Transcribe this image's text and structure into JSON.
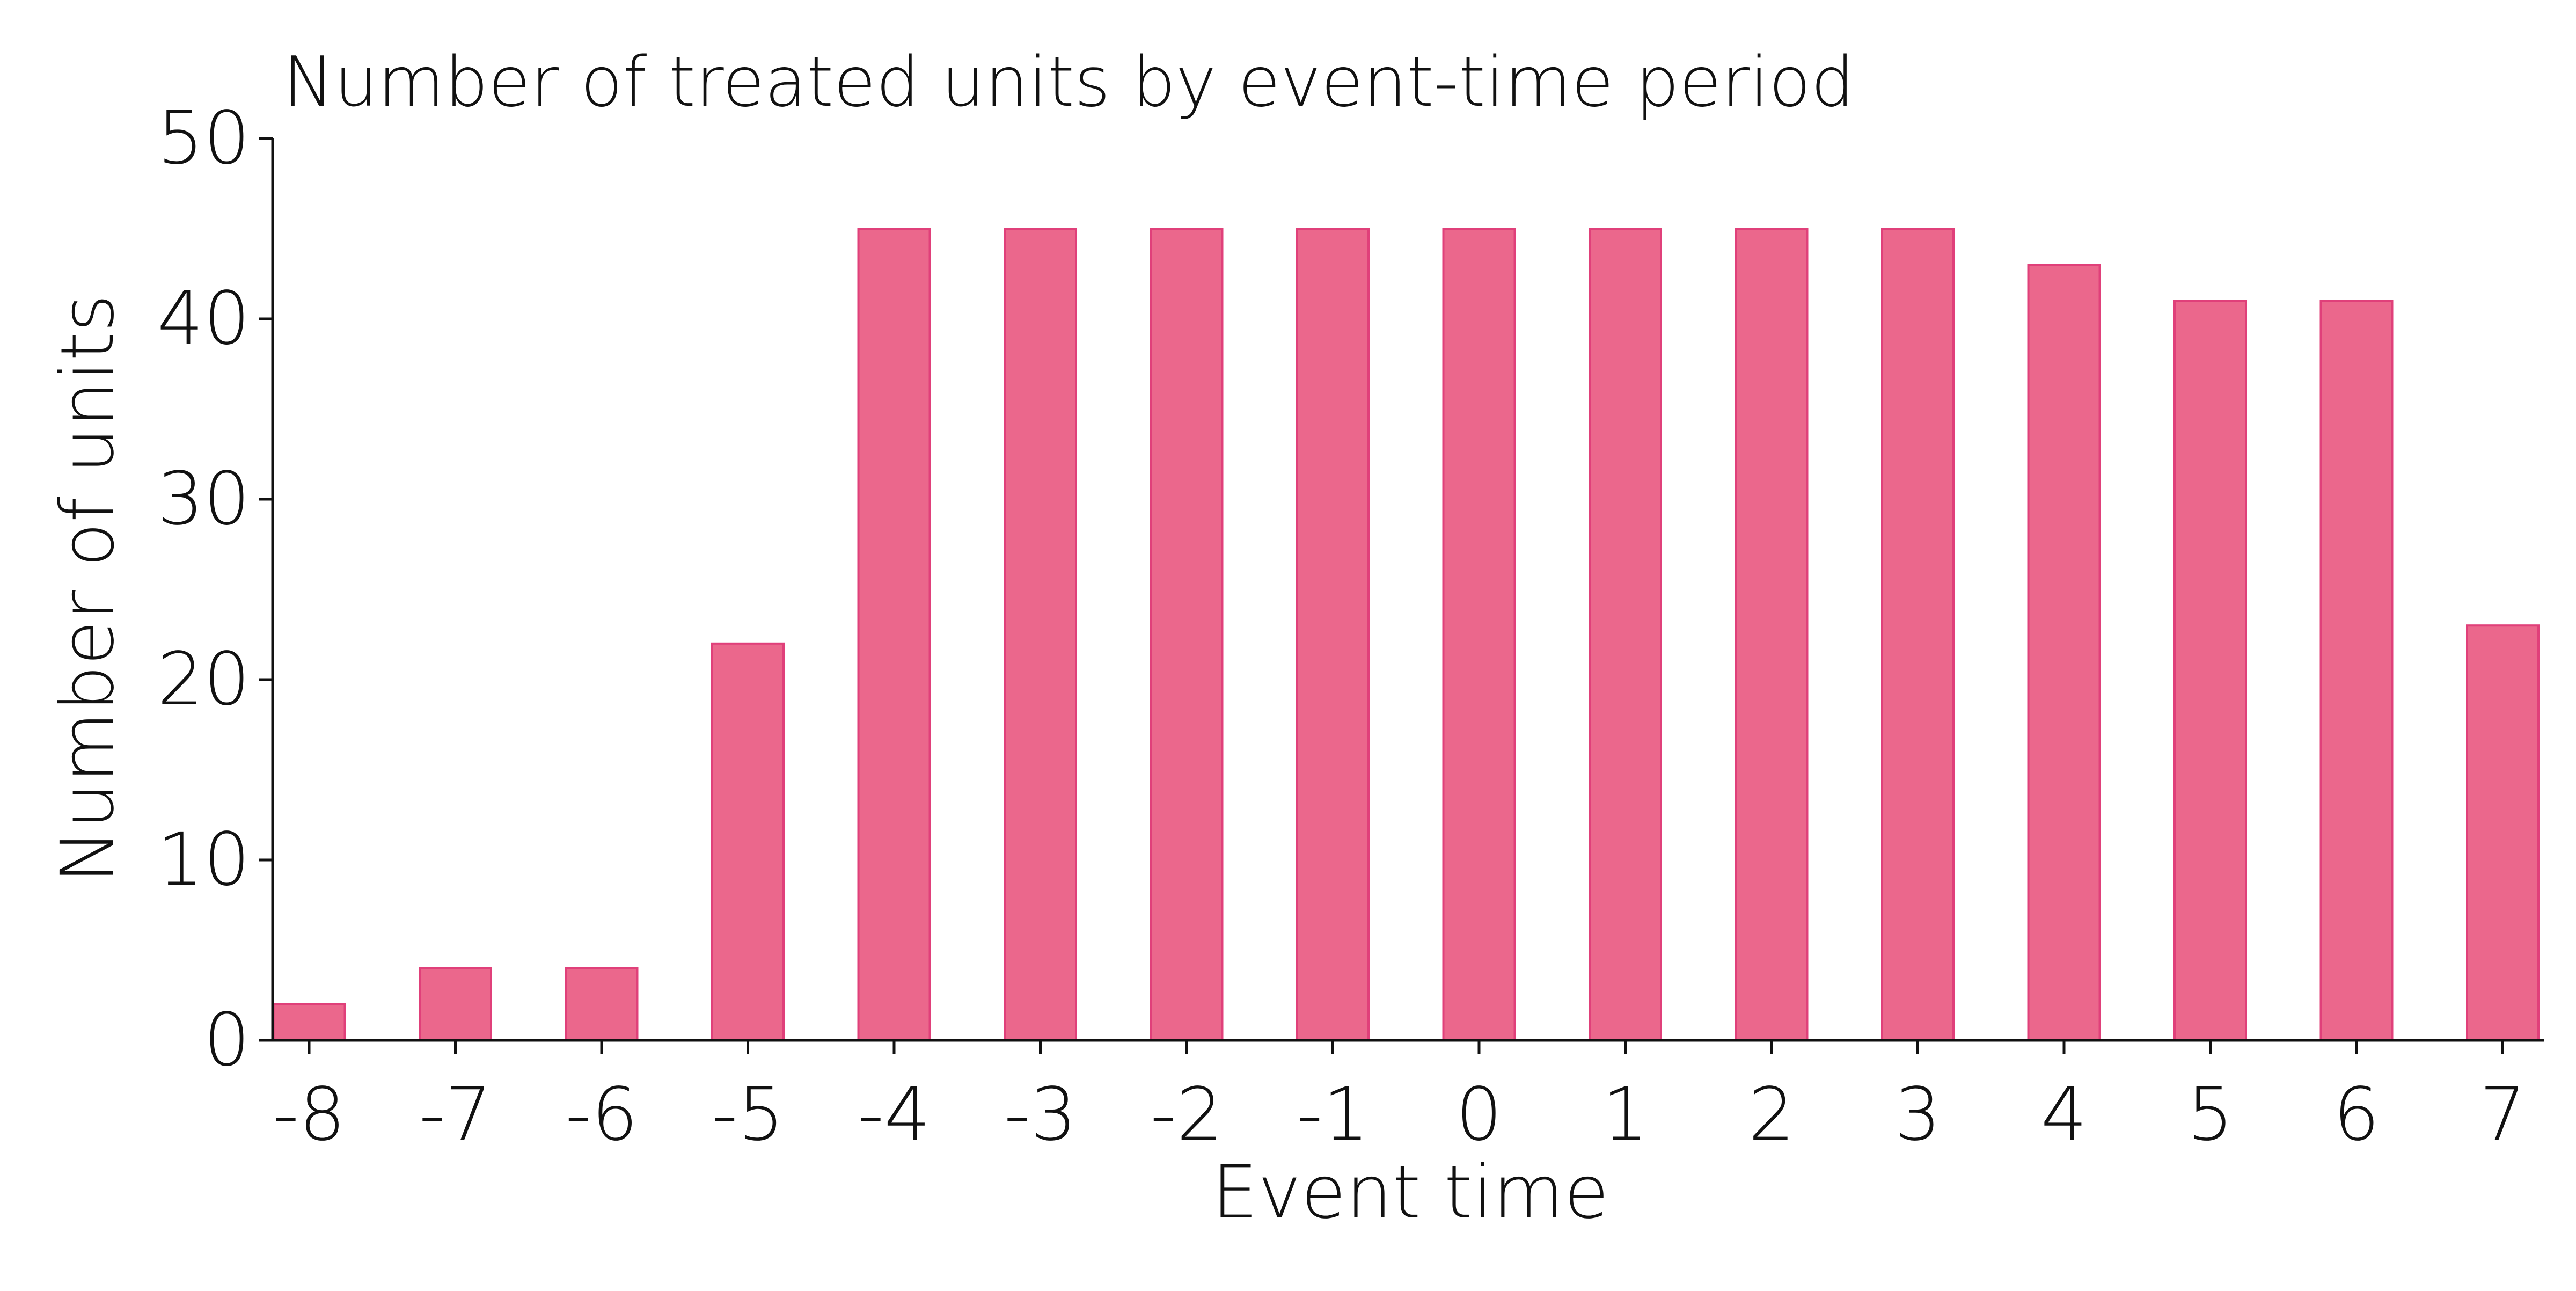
{
  "chart_data": {
    "type": "bar",
    "title": "Number of treated units by event-time period",
    "xlabel": "Event time",
    "ylabel": "Number of units",
    "categories": [
      "-8",
      "-7",
      "-6",
      "-5",
      "-4",
      "-3",
      "-2",
      "-1",
      "0",
      "1",
      "2",
      "3",
      "4",
      "5",
      "6",
      "7"
    ],
    "values": [
      2,
      4,
      4,
      22,
      45,
      45,
      45,
      45,
      45,
      45,
      45,
      45,
      43,
      41,
      41,
      23
    ],
    "ylim": [
      0,
      50
    ],
    "yticks": [
      "0",
      "10",
      "20",
      "30",
      "40",
      "50"
    ],
    "grid": false,
    "bar_color": "#eb678c",
    "bar_edge_color": "#e0407a",
    "axis_color": "#111111"
  }
}
